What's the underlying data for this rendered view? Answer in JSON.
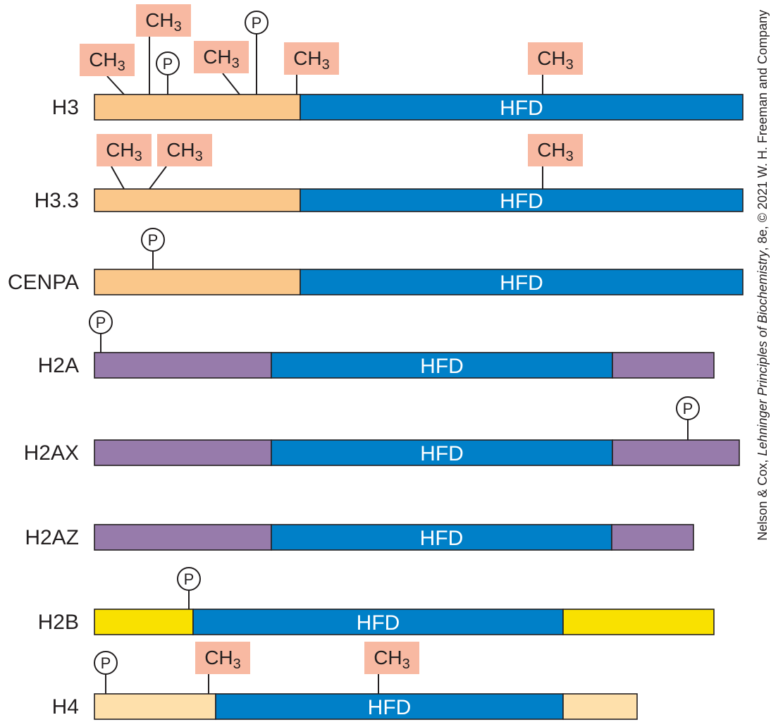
{
  "colors": {
    "hfd": "#0080c8",
    "h3_tail": "#fac78a",
    "h2a_tail": "#977bab",
    "h2b_tail": "#f9e100",
    "h4_tail": "#fee0ab",
    "methyl_box": "#f8b9a2",
    "outline": "#231f20"
  },
  "mark_labels": {
    "methyl_main": "CH",
    "methyl_sub": "3",
    "phosphate": "P"
  },
  "domain_label": "HFD",
  "credit": {
    "part1": "Nelson & Cox, ",
    "book": "Lehninger Principles of Biochemistry",
    "part2": ", 8e, © 2021 W. H. Freeman and Company"
  },
  "histones": [
    {
      "name": "H3",
      "domain_label": "HFD",
      "tail_color": "h3_tail",
      "marks": [
        {
          "type": "methyl"
        },
        {
          "type": "methyl"
        },
        {
          "type": "phosphate"
        },
        {
          "type": "methyl"
        },
        {
          "type": "phosphate"
        },
        {
          "type": "methyl"
        },
        {
          "type": "methyl"
        }
      ]
    },
    {
      "name": "H3.3",
      "domain_label": "HFD",
      "tail_color": "h3_tail",
      "marks": [
        {
          "type": "methyl"
        },
        {
          "type": "methyl"
        },
        {
          "type": "methyl"
        }
      ]
    },
    {
      "name": "CENPA",
      "domain_label": "HFD",
      "tail_color": "h3_tail",
      "marks": [
        {
          "type": "phosphate"
        }
      ]
    },
    {
      "name": "H2A",
      "domain_label": "HFD",
      "tail_color": "h2a_tail",
      "marks": [
        {
          "type": "phosphate"
        }
      ]
    },
    {
      "name": "H2AX",
      "domain_label": "HFD",
      "tail_color": "h2a_tail",
      "marks": [
        {
          "type": "phosphate"
        }
      ]
    },
    {
      "name": "H2AZ",
      "domain_label": "HFD",
      "tail_color": "h2a_tail",
      "marks": []
    },
    {
      "name": "H2B",
      "domain_label": "HFD",
      "tail_color": "h2b_tail",
      "marks": [
        {
          "type": "phosphate"
        }
      ]
    },
    {
      "name": "H4",
      "domain_label": "HFD",
      "tail_color": "h4_tail",
      "marks": [
        {
          "type": "phosphate"
        },
        {
          "type": "methyl"
        },
        {
          "type": "methyl"
        }
      ]
    }
  ]
}
